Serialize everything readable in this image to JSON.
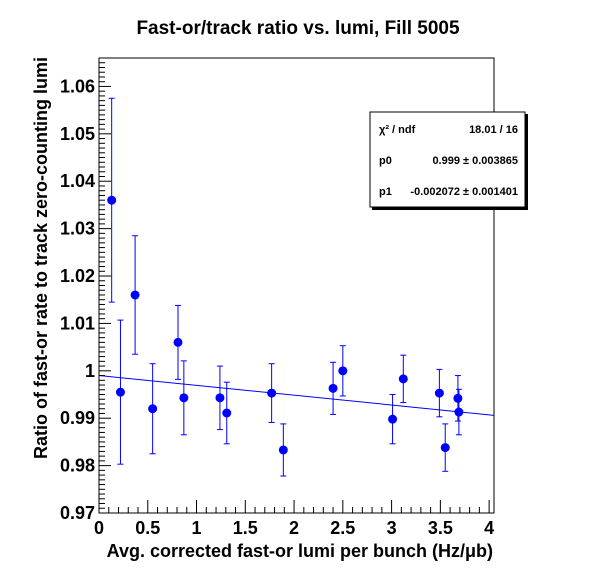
{
  "chart_data": {
    "type": "scatter",
    "title": "Fast-or/track ratio vs. lumi, Fill 5005",
    "xlabel": "Avg. corrected fast-or lumi per bunch (Hz/μb)",
    "ylabel": "Ratio of fast-or rate to track zero-counting lumi",
    "xlim": [
      0,
      4.05
    ],
    "ylim": [
      0.97,
      1.066
    ],
    "x_ticks": [
      0,
      0.5,
      1,
      1.5,
      2,
      2.5,
      3,
      3.5,
      4
    ],
    "x_tick_labels": [
      "0",
      "0.5",
      "1",
      "1.5",
      "2",
      "2.5",
      "3",
      "3.5",
      "4"
    ],
    "y_ticks": [
      0.97,
      0.98,
      0.99,
      1.0,
      1.01,
      1.02,
      1.03,
      1.04,
      1.05,
      1.06
    ],
    "y_tick_labels": [
      "0.97",
      "0.98",
      "0.99",
      "1",
      "1.01",
      "1.02",
      "1.03",
      "1.04",
      "1.05",
      "1.06"
    ],
    "marker_color": "#0000ff",
    "line_color": "#0000ff",
    "grid": false,
    "points": [
      {
        "x": 0.13,
        "y": 1.036,
        "err": 0.0215
      },
      {
        "x": 0.22,
        "y": 0.9955,
        "err": 0.0152
      },
      {
        "x": 0.37,
        "y": 1.016,
        "err": 0.0125
      },
      {
        "x": 0.55,
        "y": 0.992,
        "err": 0.0095
      },
      {
        "x": 0.81,
        "y": 1.006,
        "err": 0.0078
      },
      {
        "x": 0.87,
        "y": 0.9943,
        "err": 0.0078
      },
      {
        "x": 1.24,
        "y": 0.9943,
        "err": 0.0067
      },
      {
        "x": 1.31,
        "y": 0.9911,
        "err": 0.0065
      },
      {
        "x": 1.77,
        "y": 0.9953,
        "err": 0.0062
      },
      {
        "x": 1.89,
        "y": 0.9833,
        "err": 0.0055
      },
      {
        "x": 2.4,
        "y": 0.9963,
        "err": 0.0055
      },
      {
        "x": 2.5,
        "y": 1.0,
        "err": 0.0053
      },
      {
        "x": 3.01,
        "y": 0.9898,
        "err": 0.0052
      },
      {
        "x": 3.12,
        "y": 0.9983,
        "err": 0.005
      },
      {
        "x": 3.49,
        "y": 0.9953,
        "err": 0.005
      },
      {
        "x": 3.55,
        "y": 0.9838,
        "err": 0.005
      },
      {
        "x": 3.68,
        "y": 0.9942,
        "err": 0.0048
      },
      {
        "x": 3.69,
        "y": 0.9913,
        "err": 0.0048
      }
    ],
    "fit_line": {
      "p0": 0.999,
      "p1": -0.002072,
      "x_range": [
        0,
        4.05
      ]
    },
    "stats_box": {
      "placement": "top-right",
      "rows": [
        {
          "label": "χ² / ndf",
          "value": "18.01 / 16"
        },
        {
          "label": "p0",
          "value": "0.999 ± 0.003865"
        },
        {
          "label": "p1",
          "value": "-0.002072 ± 0.001401"
        }
      ]
    }
  }
}
